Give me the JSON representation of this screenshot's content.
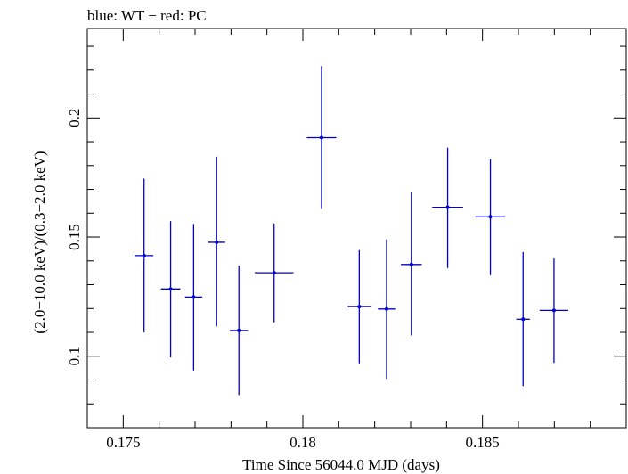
{
  "chart_data": {
    "type": "scatter",
    "title": "blue: WT − red: PC",
    "xlabel": "Time Since 56044.0 MJD (days)",
    "ylabel": "(2.0−10.0 keV)/(0.3−2.0 keV)",
    "xlim": [
      0.174,
      0.189
    ],
    "ylim": [
      0.07,
      0.2375
    ],
    "x_ticks": [
      0.175,
      0.18,
      0.185
    ],
    "x_tick_labels": [
      "0.175",
      "0.18",
      "0.185"
    ],
    "y_ticks": [
      0.1,
      0.15,
      0.2
    ],
    "y_tick_labels": [
      "0.1",
      "0.15",
      "0.2"
    ],
    "grid": false,
    "series": [
      {
        "color": "#0000cc",
        "points": [
          {
            "x": 0.17558,
            "y": 0.1422,
            "xerr": 0.00026,
            "ylo": 0.11,
            "yhi": 0.1745
          },
          {
            "x": 0.17632,
            "y": 0.1282,
            "xerr": 0.00027,
            "ylo": 0.0995,
            "yhi": 0.1567
          },
          {
            "x": 0.17696,
            "y": 0.1248,
            "xerr": 0.00024,
            "ylo": 0.094,
            "yhi": 0.1555
          },
          {
            "x": 0.1776,
            "y": 0.1478,
            "xerr": 0.00024,
            "ylo": 0.1125,
            "yhi": 0.1837
          },
          {
            "x": 0.17822,
            "y": 0.1108,
            "xerr": 0.00025,
            "ylo": 0.0837,
            "yhi": 0.138
          },
          {
            "x": 0.1792,
            "y": 0.135,
            "xerr": 0.00054,
            "ylo": 0.1142,
            "yhi": 0.1557
          },
          {
            "x": 0.18052,
            "y": 0.1917,
            "xerr": 0.00041,
            "ylo": 0.1617,
            "yhi": 0.2217
          },
          {
            "x": 0.18157,
            "y": 0.1208,
            "xerr": 0.00032,
            "ylo": 0.097,
            "yhi": 0.1445
          },
          {
            "x": 0.18233,
            "y": 0.1198,
            "xerr": 0.00024,
            "ylo": 0.0905,
            "yhi": 0.149
          },
          {
            "x": 0.18302,
            "y": 0.1385,
            "xerr": 0.00029,
            "ylo": 0.1087,
            "yhi": 0.1687
          },
          {
            "x": 0.18403,
            "y": 0.1625,
            "xerr": 0.00043,
            "ylo": 0.137,
            "yhi": 0.1875
          },
          {
            "x": 0.18522,
            "y": 0.1585,
            "xerr": 0.00042,
            "ylo": 0.134,
            "yhi": 0.1827
          },
          {
            "x": 0.18613,
            "y": 0.1155,
            "xerr": 0.00019,
            "ylo": 0.0875,
            "yhi": 0.1437
          },
          {
            "x": 0.18699,
            "y": 0.1192,
            "xerr": 0.0004,
            "ylo": 0.0972,
            "yhi": 0.141
          }
        ]
      }
    ]
  }
}
